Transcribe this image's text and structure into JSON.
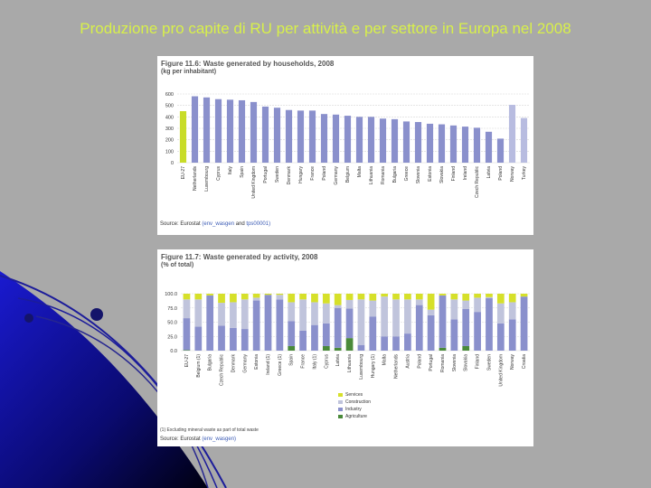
{
  "slide": {
    "title": "Produzione pro capite di RU per attività e per settore in Europa nel 2008"
  },
  "colors": {
    "background": "#a9a9a9",
    "title": "#d8f04a",
    "highlight_bar": "#c8dc28",
    "main_bar": "#8a90cc",
    "light_bar": "#b8bce0",
    "services": "#d6e02a",
    "construction": "#c0c4dc",
    "industry": "#8a90cc",
    "agriculture": "#4a8a3a"
  },
  "chart_data": [
    {
      "type": "bar",
      "title": "Waste generated by households, 2008",
      "figure_label": "Figure 11.6:",
      "subtitle": "(kg per inhabitant)",
      "ylim": [
        0,
        600
      ],
      "yticks": [
        0,
        100,
        200,
        300,
        400,
        500,
        600
      ],
      "categories": [
        "EU-27",
        "Netherlands",
        "Luxembourg",
        "Cyprus",
        "Italy",
        "Spain",
        "United Kingdom",
        "Portugal",
        "Sweden",
        "Denmark",
        "Hungary",
        "France",
        "Poland",
        "Germany",
        "Belgium",
        "Malta",
        "Lithuania",
        "Romania",
        "Bulgaria",
        "Greece",
        "Slovenia",
        "Estonia",
        "Slovakia",
        "Finland",
        "Ireland",
        "Czech Republic",
        "Latvia",
        "Poland",
        "Norway",
        "Turkey"
      ],
      "values": [
        450,
        580,
        570,
        555,
        550,
        545,
        530,
        490,
        480,
        460,
        455,
        455,
        425,
        420,
        410,
        400,
        400,
        385,
        380,
        360,
        355,
        340,
        335,
        325,
        315,
        305,
        270,
        210,
        505,
        390
      ],
      "bar_styles": [
        "highlight",
        "main",
        "main",
        "main",
        "main",
        "main",
        "main",
        "main",
        "main",
        "main",
        "main",
        "main",
        "main",
        "main",
        "main",
        "main",
        "main",
        "main",
        "main",
        "main",
        "main",
        "main",
        "main",
        "main",
        "main",
        "main",
        "main",
        "main",
        "light",
        "light"
      ],
      "source_prefix": "Source: Eurostat ",
      "source_link1": "(env_wasgen",
      "source_mid": " and ",
      "source_link2": "tps00001)"
    },
    {
      "type": "bar",
      "stacked": true,
      "title": "Waste generated by activity, 2008",
      "figure_label": "Figure 11.7:",
      "subtitle": "(% of total)",
      "ylim": [
        0,
        100
      ],
      "yticks": [
        0,
        25,
        50,
        75,
        100
      ],
      "categories": [
        "EU-27",
        "Belgium (1)",
        "Bulgaria",
        "Czech Republic",
        "Denmark",
        "Germany",
        "Estonia",
        "Ireland (1)",
        "Greece (1)",
        "Spain",
        "France",
        "Italy (1)",
        "Cyprus",
        "Latvia",
        "Lithuania",
        "Luxembourg",
        "Hungary (1)",
        "Malta",
        "Netherlands",
        "Austria",
        "Poland",
        "Portugal",
        "Romania",
        "Slovenia",
        "Slovakia",
        "Finland",
        "Sweden",
        "United Kingdom",
        "Norway",
        "Croatia"
      ],
      "series": [
        {
          "name": "Agriculture",
          "values": [
            1,
            0,
            0,
            0,
            0,
            0,
            0,
            0,
            0,
            8,
            0,
            0,
            8,
            5,
            22,
            0,
            0,
            0,
            0,
            0,
            0,
            0,
            5,
            0,
            8,
            0,
            0,
            0,
            0,
            0
          ]
        },
        {
          "name": "Industry",
          "values": [
            56,
            42,
            97,
            44,
            40,
            38,
            88,
            98,
            90,
            44,
            35,
            45,
            40,
            70,
            52,
            10,
            60,
            25,
            25,
            30,
            80,
            62,
            92,
            55,
            65,
            68,
            92,
            48,
            55,
            95
          ]
        },
        {
          "name": "Construction",
          "values": [
            33,
            48,
            0,
            40,
            45,
            52,
            5,
            0,
            8,
            33,
            55,
            40,
            35,
            5,
            15,
            80,
            28,
            70,
            65,
            60,
            10,
            10,
            0,
            35,
            15,
            25,
            2,
            35,
            30,
            0
          ]
        },
        {
          "name": "Services",
          "values": [
            10,
            10,
            3,
            16,
            15,
            10,
            7,
            2,
            2,
            15,
            10,
            15,
            17,
            20,
            11,
            10,
            12,
            5,
            10,
            10,
            10,
            28,
            3,
            10,
            12,
            7,
            6,
            17,
            15,
            5
          ]
        }
      ],
      "legend": [
        "Services",
        "Construction",
        "Industry",
        "Agriculture"
      ],
      "footnote": "(1) Excluding mineral waste as part of total waste",
      "source_prefix": "Source: Eurostat ",
      "source_link1": "(env_wasgen)"
    }
  ]
}
